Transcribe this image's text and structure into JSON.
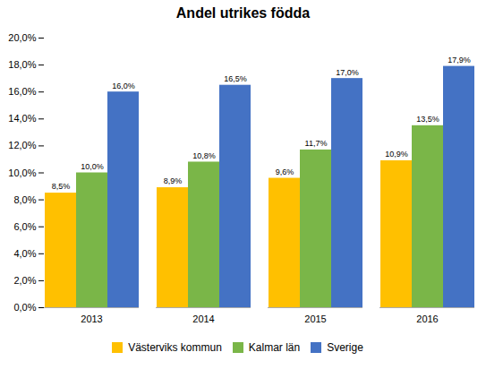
{
  "chart_data": {
    "type": "bar",
    "title": "Andel utrikes födda",
    "categories": [
      "2013",
      "2014",
      "2015",
      "2016"
    ],
    "series": [
      {
        "name": "Västerviks kommun",
        "color": "#FFC000",
        "values": [
          8.5,
          8.9,
          9.6,
          10.9
        ],
        "value_labels": [
          "8,5%",
          "8,9%",
          "9,6%",
          "10,9%"
        ]
      },
      {
        "name": "Kalmar län",
        "color": "#7AB648",
        "values": [
          10.0,
          10.8,
          11.7,
          13.5
        ],
        "value_labels": [
          "10,0%",
          "10,8%",
          "11,7%",
          "13,5%"
        ]
      },
      {
        "name": "Sverige",
        "color": "#4472C4",
        "values": [
          16.0,
          16.5,
          17.0,
          17.9
        ],
        "value_labels": [
          "16,0%",
          "16,5%",
          "17,0%",
          "17,9%"
        ]
      }
    ],
    "ylim": [
      0,
      20
    ],
    "yticks": [
      {
        "value": 0,
        "label": "0,0%"
      },
      {
        "value": 2,
        "label": "2,0%"
      },
      {
        "value": 4,
        "label": "4,0%"
      },
      {
        "value": 6,
        "label": "6,0%"
      },
      {
        "value": 8,
        "label": "8,0%"
      },
      {
        "value": 10,
        "label": "10,0%"
      },
      {
        "value": 12,
        "label": "12,0%"
      },
      {
        "value": 14,
        "label": "14,0%"
      },
      {
        "value": 16,
        "label": "16,0%"
      },
      {
        "value": 18,
        "label": "18,0%"
      },
      {
        "value": 20,
        "label": "20,0%"
      }
    ],
    "grid": false,
    "legend": "bottom",
    "data_labels": true
  }
}
